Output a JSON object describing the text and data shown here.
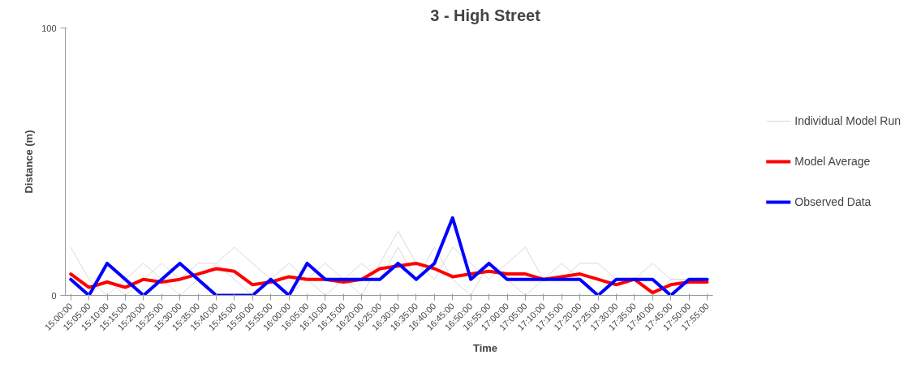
{
  "chart_data": {
    "type": "line",
    "title": "3 - High Street",
    "xlabel": "Time",
    "ylabel": "Distance (m)",
    "categories": [
      "15:00:00",
      "15:05:00",
      "15:10:00",
      "15:15:00",
      "15:20:00",
      "15:25:00",
      "15:30:00",
      "15:35:00",
      "15:40:00",
      "15:45:00",
      "15:50:00",
      "15:55:00",
      "16:00:00",
      "16:05:00",
      "16:10:00",
      "16:15:00",
      "16:20:00",
      "16:25:00",
      "16:30:00",
      "16:35:00",
      "16:40:00",
      "16:45:00",
      "16:50:00",
      "16:55:00",
      "17:00:00",
      "17:05:00",
      "17:10:00",
      "17:15:00",
      "17:20:00",
      "17:25:00",
      "17:30:00",
      "17:35:00",
      "17:40:00",
      "17:45:00",
      "17:50:00",
      "17:55:00"
    ],
    "series": [
      {
        "name": "Individual Model Run",
        "color": "#d9d9d9",
        "values": [
          18,
          6,
          0,
          6,
          12,
          6,
          0,
          6,
          12,
          18,
          12,
          6,
          0,
          6,
          12,
          6,
          0,
          12,
          24,
          12,
          6,
          18,
          12,
          6,
          12,
          18,
          6,
          6,
          12,
          12,
          6,
          6,
          12,
          6,
          6,
          6
        ]
      },
      {
        "color": "#d9d9d9",
        "values": [
          6,
          0,
          6,
          0,
          6,
          12,
          6,
          12,
          12,
          6,
          0,
          6,
          12,
          6,
          0,
          6,
          12,
          6,
          18,
          6,
          18,
          6,
          0,
          12,
          6,
          0,
          6,
          12,
          6,
          0,
          6,
          6,
          0,
          6,
          6,
          6
        ]
      },
      {
        "name": "Model Average",
        "color": "#ff0000",
        "values": [
          8,
          3,
          5,
          3,
          6,
          5,
          6,
          8,
          10,
          9,
          4,
          5,
          7,
          6,
          6,
          5,
          6,
          10,
          11,
          12,
          10,
          7,
          8,
          9,
          8,
          8,
          6,
          7,
          8,
          6,
          4,
          6,
          1,
          4,
          5,
          5
        ]
      },
      {
        "name": "Observed Data",
        "color": "#0000ff",
        "values": [
          6,
          0,
          12,
          6,
          0,
          6,
          12,
          6,
          0,
          0,
          0,
          6,
          0,
          12,
          6,
          6,
          6,
          6,
          12,
          6,
          12,
          29,
          6,
          12,
          6,
          6,
          6,
          6,
          6,
          0,
          6,
          6,
          6,
          0,
          6,
          6
        ]
      }
    ],
    "ylim": [
      0,
      100
    ],
    "yticks": [
      0,
      100
    ],
    "grid": false,
    "legend": "right",
    "marker": "none",
    "line_style": "solid"
  }
}
